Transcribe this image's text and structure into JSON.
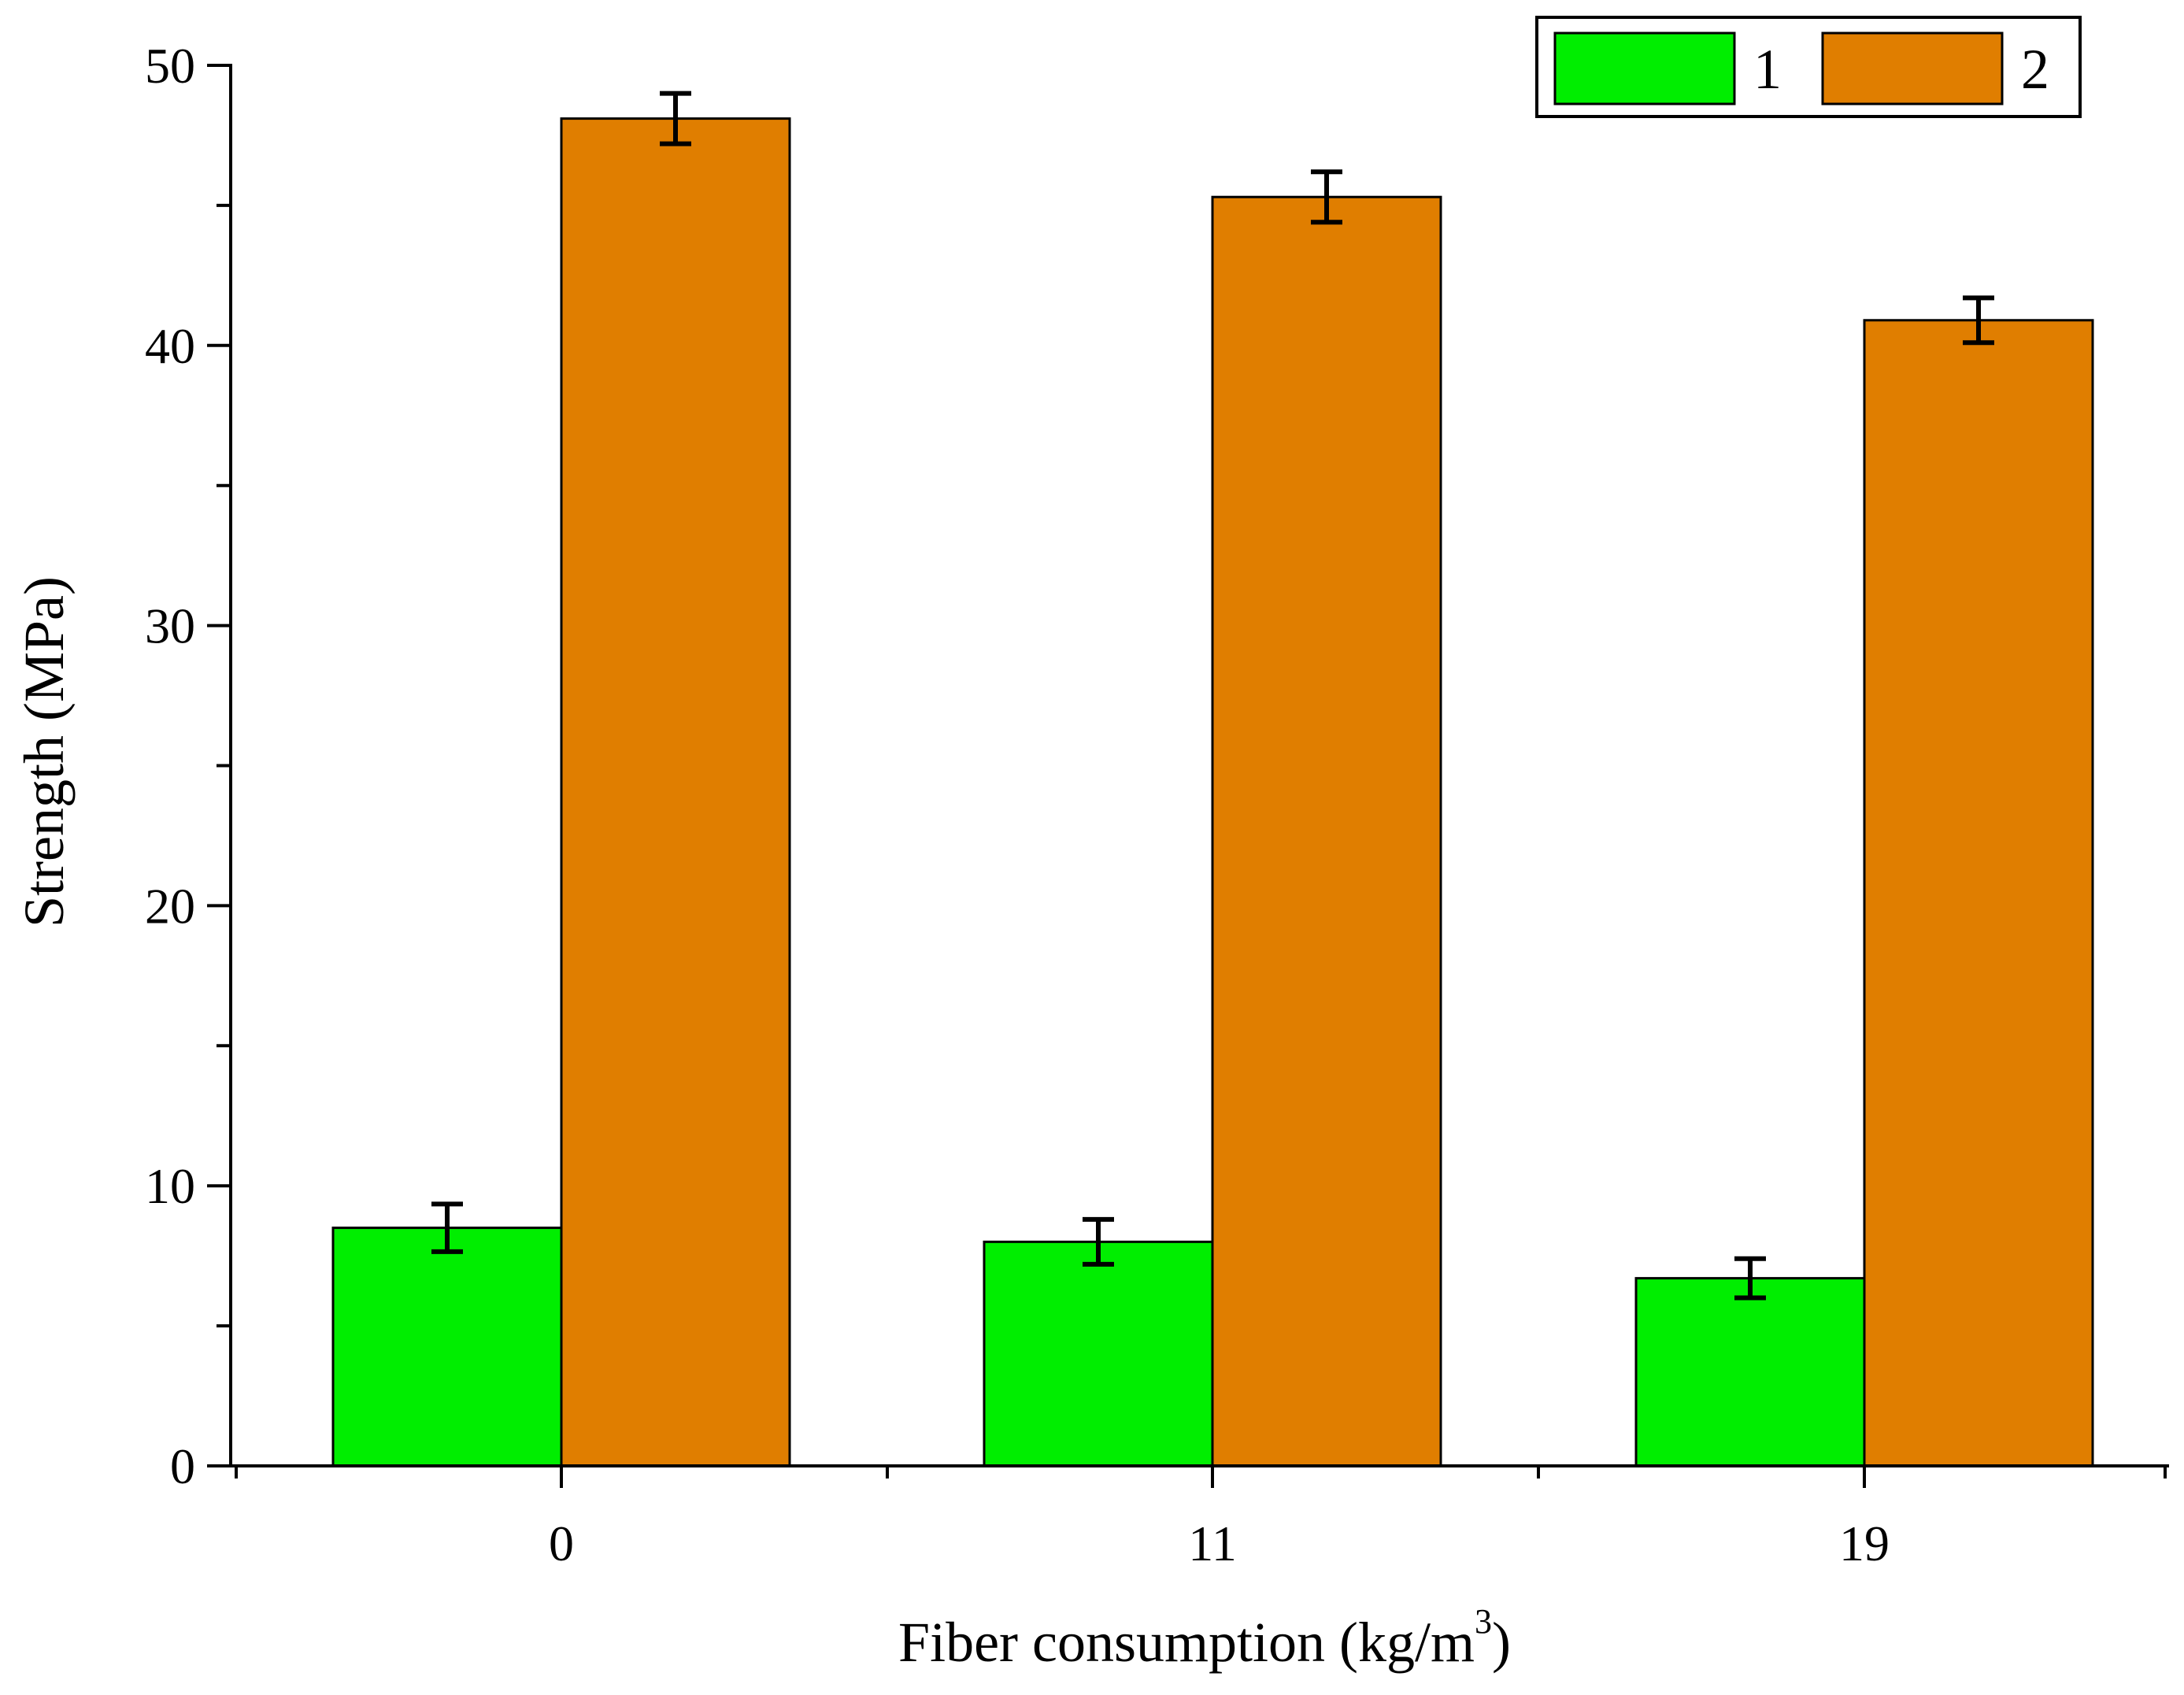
{
  "chart_data": {
    "type": "bar",
    "categories": [
      "0",
      "11",
      "19"
    ],
    "series": [
      {
        "name": "1",
        "values": [
          8.5,
          8.0,
          6.7
        ],
        "errors": [
          0.85,
          0.8,
          0.7
        ],
        "color": "#00ee00"
      },
      {
        "name": "2",
        "values": [
          48.1,
          45.3,
          40.9
        ],
        "errors": [
          0.9,
          0.9,
          0.8
        ],
        "color": "#e07e00"
      }
    ],
    "xlabel_main": "Fiber consumption (kg/m",
    "xlabel_sup": "3",
    "xlabel_close": ")",
    "ylabel": "Strength (MPa)",
    "ylim": [
      0,
      50
    ],
    "yticks": [
      "0",
      "10",
      "20",
      "30",
      "40",
      "50"
    ],
    "grid": false,
    "legend_position": "top-right"
  }
}
